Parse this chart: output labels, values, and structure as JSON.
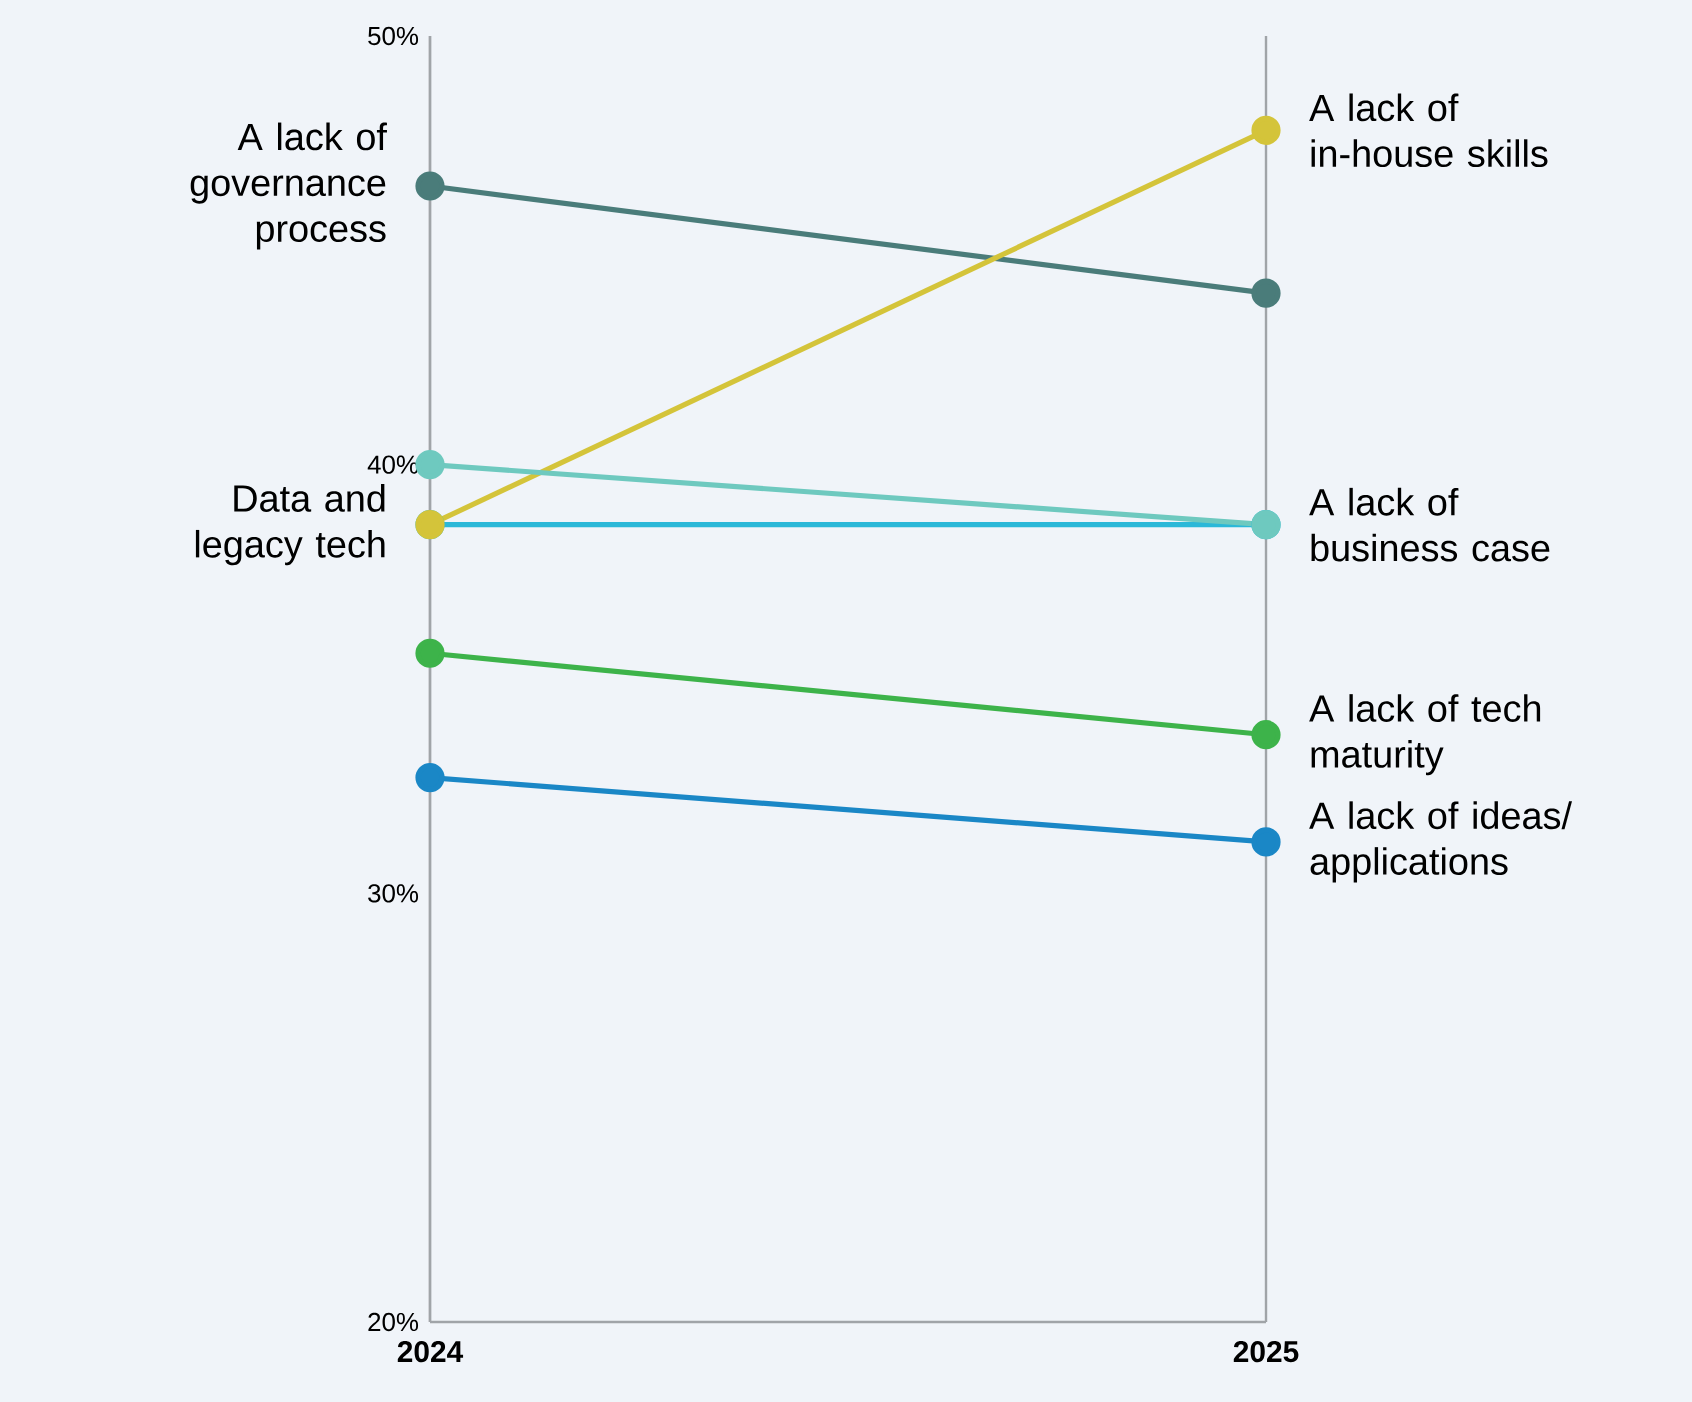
{
  "chart_data": {
    "type": "line",
    "categories": [
      "2024",
      "2025"
    ],
    "series": [
      {
        "color": "#4a7c7a",
        "values": [
          46.5,
          44.0
        ]
      },
      {
        "color": "#2bb8d8",
        "values": [
          38.6,
          38.6
        ]
      },
      {
        "color": "#d4c43a",
        "values": [
          38.6,
          47.8
        ]
      },
      {
        "color": "#6ec9bf",
        "values": [
          40.0,
          38.6
        ]
      },
      {
        "color": "#3db34a",
        "values": [
          35.6,
          33.7
        ]
      },
      {
        "color": "#1a87c6",
        "values": [
          32.7,
          31.2
        ]
      }
    ],
    "ylim": [
      20,
      50
    ],
    "yticks": [
      {
        "value": 20,
        "label": "20%"
      },
      {
        "value": 30,
        "label": "30%"
      },
      {
        "value": 40,
        "label": "40%"
      },
      {
        "value": 50,
        "label": "50%"
      }
    ],
    "grid": "x",
    "marker": "circle",
    "line_style": "solid",
    "annotations": [
      {
        "text": "A lack of governance process",
        "x": "2024",
        "y": 46.5
      },
      {
        "text": "Data and legacy tech",
        "x": "2024",
        "y": 38.6
      },
      {
        "text": "A lack of in-house skills",
        "x": "2025",
        "y": 47.8
      },
      {
        "text": "A lack of business case",
        "x": "2025",
        "y": 38.6
      },
      {
        "text": "A lack of tech maturity",
        "x": "2025",
        "y": 33.7
      },
      {
        "text": "A lack of ideas/ applications",
        "x": "2025",
        "y": 31.2
      }
    ]
  }
}
